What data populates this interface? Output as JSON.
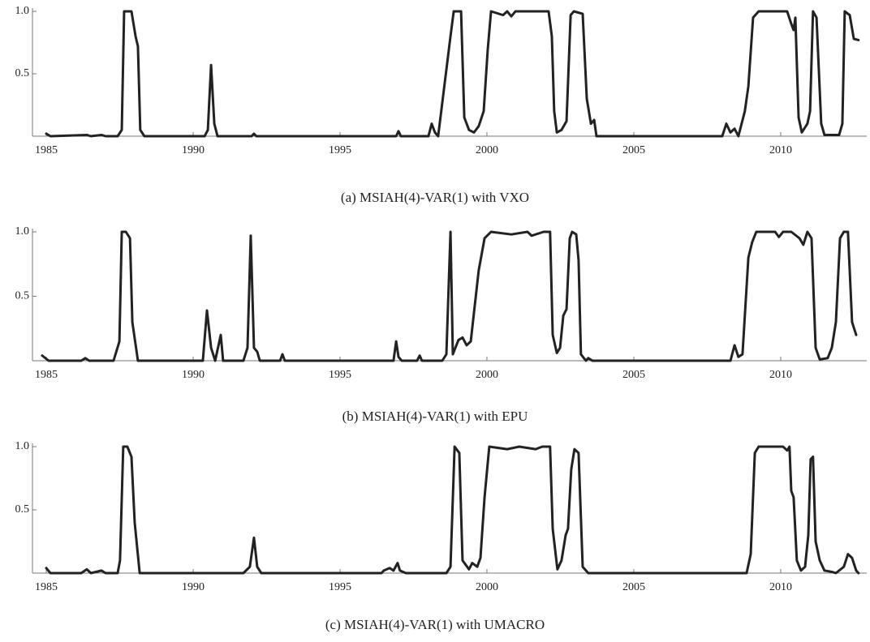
{
  "chart_data": [
    {
      "type": "line",
      "title": "(a) MSIAH(4)-VAR(1) with VXO",
      "color": "#222222",
      "xlim": [
        1984.53,
        2012.93
      ],
      "ylim": [
        0,
        1
      ],
      "xticks": [
        1985,
        1990,
        1995,
        2000,
        2005,
        2010
      ],
      "yticks": [
        0.5,
        {
          "value": 1,
          "label": "1.0"
        }
      ],
      "x": [
        1985.0,
        1985.14,
        1986.38,
        1986.52,
        1986.88,
        1987.02,
        1987.43,
        1987.57,
        1987.65,
        1987.9,
        1988.04,
        1988.12,
        1988.2,
        1988.34,
        1990.39,
        1990.5,
        1990.61,
        1990.72,
        1990.83,
        1991.99,
        1992.07,
        1992.15,
        1996.91,
        1996.99,
        1997.07,
        1998.01,
        1998.12,
        1998.23,
        1998.34,
        1998.76,
        1998.87,
        1999.12,
        1999.23,
        1999.39,
        1999.56,
        1999.72,
        1999.89,
        2000.03,
        2000.14,
        2000.55,
        2000.69,
        2000.83,
        2000.97,
        2002.1,
        2002.21,
        2002.29,
        2002.38,
        2002.54,
        2002.71,
        2002.85,
        2002.96,
        2003.26,
        2003.4,
        2003.54,
        2003.65,
        2003.73,
        2008.01,
        2008.15,
        2008.29,
        2008.43,
        2008.56,
        2008.78,
        2008.9,
        2009.06,
        2009.25,
        2010.22,
        2010.36,
        2010.44,
        2010.5,
        2010.61,
        2010.72,
        2010.91,
        2011.0,
        2011.1,
        2011.22,
        2011.38,
        2011.49,
        2011.99,
        2012.1,
        2012.18,
        2012.35,
        2012.49,
        2012.65
      ],
      "values": [
        0.02,
        0,
        0.01,
        0,
        0.01,
        0,
        0,
        0.05,
        1,
        1,
        0.8,
        0.72,
        0.05,
        0,
        0,
        0.05,
        0.57,
        0.1,
        0,
        0,
        0.02,
        0,
        0,
        0.04,
        0,
        0,
        0.1,
        0.03,
        0,
        0.8,
        1,
        1,
        0.15,
        0.05,
        0.03,
        0.08,
        0.2,
        0.7,
        1,
        0.97,
        1,
        0.96,
        1,
        1,
        0.8,
        0.2,
        0.03,
        0.05,
        0.12,
        0.97,
        1,
        0.98,
        0.3,
        0.1,
        0.13,
        0,
        0,
        0.1,
        0.03,
        0.06,
        0,
        0.2,
        0.4,
        0.95,
        1,
        1,
        0.9,
        0.85,
        0.95,
        0.15,
        0.03,
        0.1,
        0.2,
        1,
        0.95,
        0.1,
        0.01,
        0.01,
        0.1,
        1,
        0.97,
        0.78,
        0.77
      ]
    },
    {
      "type": "line",
      "title": "(b) MSIAH(4)-VAR(1) with EPU",
      "color": "#222222",
      "xlim": [
        1984.53,
        2012.93
      ],
      "ylim": [
        0,
        1
      ],
      "xticks": [
        1985,
        1990,
        1995,
        2000,
        2005,
        2010
      ],
      "yticks": [
        0.5,
        {
          "value": 1,
          "label": "1.0"
        }
      ],
      "x": [
        1984.86,
        1985.08,
        1986.19,
        1986.33,
        1986.46,
        1987.29,
        1987.49,
        1987.57,
        1987.71,
        1987.85,
        1987.93,
        1988.12,
        1990.33,
        1990.47,
        1990.61,
        1990.75,
        1990.94,
        1991.02,
        1991.71,
        1991.85,
        1991.96,
        1992.07,
        1992.18,
        1992.27,
        1992.96,
        1993.04,
        1993.12,
        1996.82,
        1996.91,
        1996.99,
        1997.1,
        1997.62,
        1997.71,
        1997.79,
        1998.48,
        1998.62,
        1998.76,
        1998.84,
        1999.03,
        1999.17,
        1999.31,
        1999.45,
        1999.72,
        1999.92,
        2000.14,
        2000.83,
        2001.38,
        2001.52,
        2001.93,
        2002.15,
        2002.24,
        2002.38,
        2002.49,
        2002.6,
        2002.71,
        2002.82,
        2002.9,
        2003.04,
        2003.12,
        2003.2,
        2003.37,
        2003.45,
        2003.59,
        2008.29,
        2008.43,
        2008.56,
        2008.7,
        2008.9,
        2009.03,
        2009.17,
        2009.81,
        2009.94,
        2010.08,
        2010.36,
        2010.64,
        2010.77,
        2010.91,
        2011.05,
        2011.19,
        2011.33,
        2011.6,
        2011.74,
        2011.88,
        2012.02,
        2012.15,
        2012.29,
        2012.43,
        2012.57
      ],
      "values": [
        0.04,
        0,
        0,
        0.02,
        0,
        0,
        0.15,
        1,
        1,
        0.95,
        0.3,
        0,
        0,
        0.39,
        0.1,
        0,
        0.2,
        0,
        0,
        0.1,
        0.97,
        0.1,
        0.07,
        0,
        0,
        0.05,
        0,
        0,
        0.15,
        0.03,
        0,
        0,
        0.04,
        0,
        0,
        0.05,
        1,
        0.05,
        0.16,
        0.18,
        0.12,
        0.15,
        0.7,
        0.95,
        1,
        0.98,
        1,
        0.97,
        1,
        1,
        0.2,
        0.06,
        0.1,
        0.35,
        0.4,
        0.95,
        1,
        0.98,
        0.78,
        0.05,
        0,
        0.02,
        0,
        0,
        0.12,
        0.03,
        0.05,
        0.8,
        0.92,
        1,
        1,
        0.96,
        1,
        1,
        0.95,
        0.9,
        1,
        0.95,
        0.1,
        0.01,
        0.02,
        0.1,
        0.3,
        0.95,
        1,
        1,
        0.3,
        0.2
      ]
    },
    {
      "type": "line",
      "title": "(c) MSIAH(4)-VAR(1) with UMACRO",
      "color": "#222222",
      "xlim": [
        1984.53,
        2012.93
      ],
      "ylim": [
        0,
        1
      ],
      "xticks": [
        1985,
        1990,
        1995,
        2000,
        2005,
        2010
      ],
      "yticks": [
        0.5,
        {
          "value": 1,
          "label": "1.0"
        }
      ],
      "x": [
        1985.0,
        1985.14,
        1986.19,
        1986.38,
        1986.52,
        1986.88,
        1987.02,
        1987.43,
        1987.51,
        1987.62,
        1987.76,
        1987.9,
        1988.01,
        1988.18,
        1991.71,
        1991.93,
        1992.07,
        1992.18,
        1992.32,
        1996.41,
        1996.49,
        1996.69,
        1996.82,
        1996.96,
        1997.04,
        1997.24,
        1998.62,
        1998.76,
        1998.9,
        1999.06,
        1999.17,
        1999.39,
        1999.5,
        1999.67,
        1999.78,
        1999.92,
        2000.08,
        2000.69,
        2001.1,
        2001.66,
        2001.88,
        2002.15,
        2002.24,
        2002.4,
        2002.54,
        2002.68,
        2002.76,
        2002.87,
        2002.98,
        2003.12,
        2003.26,
        2003.45,
        2008.84,
        2008.98,
        2009.12,
        2009.25,
        2010.08,
        2010.22,
        2010.3,
        2010.36,
        2010.44,
        2010.55,
        2010.69,
        2010.83,
        2010.94,
        2011.02,
        2011.1,
        2011.19,
        2011.33,
        2011.49,
        2011.74,
        2011.88,
        2012.15,
        2012.29,
        2012.43,
        2012.57,
        2012.65
      ],
      "values": [
        0.04,
        0,
        0,
        0.03,
        0,
        0.02,
        0,
        0,
        0.1,
        1,
        1,
        0.92,
        0.4,
        0,
        0,
        0.05,
        0.28,
        0.05,
        0,
        0,
        0.02,
        0.04,
        0.02,
        0.08,
        0.02,
        0,
        0,
        0.05,
        1,
        0.95,
        0.1,
        0.03,
        0.08,
        0.05,
        0.12,
        0.6,
        1,
        0.98,
        1,
        0.98,
        1,
        1,
        0.35,
        0.03,
        0.1,
        0.3,
        0.35,
        0.82,
        0.98,
        0.95,
        0.05,
        0,
        0,
        0.15,
        0.95,
        1,
        1,
        0.97,
        1,
        0.65,
        0.6,
        0.1,
        0.02,
        0.05,
        0.3,
        0.9,
        0.92,
        0.25,
        0.1,
        0.02,
        0.01,
        0,
        0.05,
        0.15,
        0.12,
        0.02,
        0
      ]
    }
  ]
}
